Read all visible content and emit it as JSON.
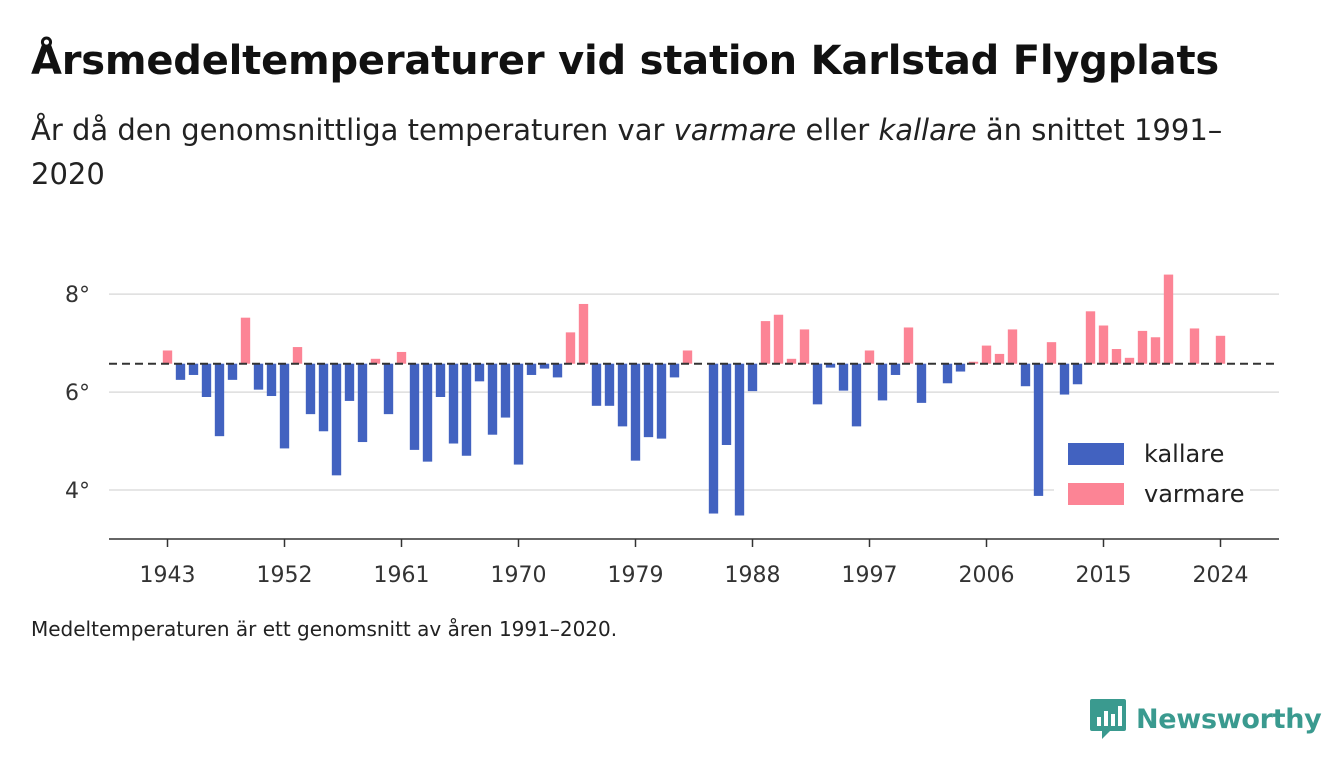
{
  "header": {
    "title": "Årsmedeltemperaturer vid station Karlstad Flygplats",
    "subtitle_parts": [
      "År då den genomsnittliga temperaturen var ",
      "varmare",
      " eller ",
      "kallare",
      " än snittet 1991–2020"
    ]
  },
  "footnote": "Medeltemperaturen är ett genomsnitt av åren 1991–2020.",
  "brand": {
    "name": "Newsworthy",
    "color": "#3a9a8f"
  },
  "colors": {
    "kallare": "#4262c0",
    "varmare": "#fc8495",
    "grid": "#dddddd",
    "axis": "#333333",
    "baseline": "#333333"
  },
  "chart_data": {
    "type": "bar",
    "baseline": 6.58,
    "baseline_style": "dashed",
    "ylim": [
      3.0,
      8.8
    ],
    "yticks": [
      4,
      6,
      8
    ],
    "ytick_labels": [
      "4°",
      "6°",
      "8°"
    ],
    "xlim": [
      1938.5,
      2028.5
    ],
    "xticks": [
      1943,
      1952,
      1961,
      1970,
      1979,
      1988,
      1997,
      2006,
      2015,
      2024
    ],
    "xtick_labels": [
      "1943",
      "1952",
      "1961",
      "1970",
      "1979",
      "1988",
      "1997",
      "2006",
      "2015",
      "2024"
    ],
    "grid": true,
    "legend": {
      "position": "bottom-right",
      "entries": [
        {
          "key": "kallare",
          "label": "kallare"
        },
        {
          "key": "varmare",
          "label": "varmare"
        }
      ]
    },
    "series": [
      {
        "name": "kallare",
        "x": [
          1944,
          1945,
          1946,
          1947,
          1948,
          1950,
          1951,
          1952,
          1954,
          1955,
          1956,
          1957,
          1958,
          1960,
          1962,
          1963,
          1964,
          1965,
          1966,
          1967,
          1968,
          1969,
          1970,
          1971,
          1972,
          1973,
          1976,
          1977,
          1978,
          1979,
          1980,
          1981,
          1982,
          1985,
          1986,
          1987,
          1988,
          1993,
          1994,
          1995,
          1996,
          1998,
          1999,
          2001,
          2003,
          2004,
          2009,
          2010,
          2012,
          2013
        ],
        "values": [
          6.25,
          6.35,
          5.9,
          5.1,
          6.25,
          6.05,
          5.92,
          4.85,
          5.55,
          5.2,
          4.3,
          5.82,
          4.98,
          5.55,
          4.82,
          4.58,
          5.9,
          4.95,
          4.7,
          6.22,
          5.13,
          5.48,
          4.52,
          6.35,
          6.48,
          6.3,
          5.72,
          5.72,
          5.3,
          4.6,
          5.08,
          5.05,
          6.3,
          3.52,
          4.92,
          3.48,
          6.02,
          5.75,
          6.5,
          6.03,
          5.3,
          5.83,
          6.35,
          5.78,
          6.18,
          6.42,
          6.12,
          3.88,
          5.95,
          6.16
        ]
      },
      {
        "name": "varmare",
        "x": [
          1943,
          1949,
          1953,
          1959,
          1961,
          1974,
          1975,
          1983,
          1989,
          1990,
          1991,
          1992,
          1997,
          2000,
          2005,
          2006,
          2007,
          2008,
          2011,
          2014,
          2015,
          2016,
          2017,
          2018,
          2019,
          2020,
          2022,
          2024
        ],
        "values": [
          6.85,
          7.52,
          6.92,
          6.68,
          6.82,
          7.22,
          7.8,
          6.85,
          7.45,
          7.58,
          6.68,
          7.28,
          6.85,
          7.32,
          6.62,
          6.95,
          6.78,
          7.28,
          7.02,
          7.65,
          7.36,
          6.88,
          6.7,
          7.25,
          7.12,
          8.4,
          7.3,
          7.15
        ]
      }
    ]
  }
}
